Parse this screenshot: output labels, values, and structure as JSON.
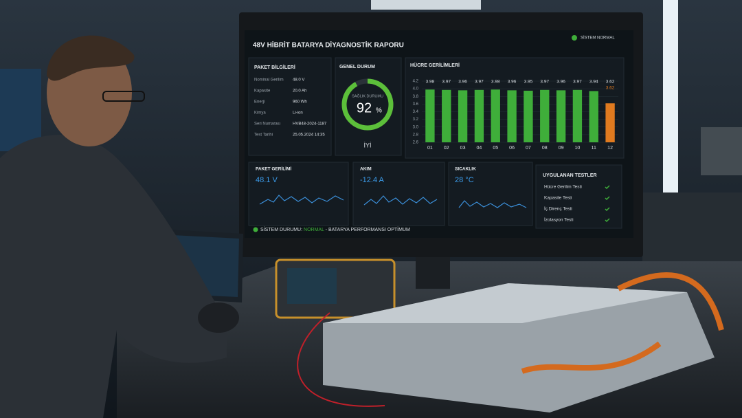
{
  "dashboard": {
    "title": "48V HİBRİT BATARYA DİYAGNOSTİK RAPORU",
    "status": "SİSTEM NORMAL",
    "pack_info": {
      "heading": "PAKET BİLGİLERİ",
      "rows": [
        [
          "Nominal Gerilim",
          "48.0 V"
        ],
        [
          "Kapasite",
          "20.0 Ah"
        ],
        [
          "Enerji",
          "960 Wh"
        ],
        [
          "Kimya",
          "Li-ion"
        ],
        [
          "Seri Numarası",
          "HVB48-2024-1187"
        ],
        [
          "Test Tarihi",
          "25.05.2024  14:35"
        ]
      ]
    },
    "health": {
      "heading": "GENEL DURUM",
      "label": "SAĞLIK DURUMU",
      "value": 92,
      "unit": "%",
      "rating": "İYİ"
    },
    "cell_voltages": {
      "type": "bar",
      "title": "HÜCRE GERİLİMLERİ",
      "categories": [
        "01",
        "02",
        "03",
        "04",
        "05",
        "06",
        "07",
        "08",
        "09",
        "10",
        "11",
        "12"
      ],
      "values": [
        3.98,
        3.97,
        3.96,
        3.97,
        3.98,
        3.96,
        3.95,
        3.97,
        3.96,
        3.97,
        3.94,
        3.62
      ],
      "colors": [
        "#3fae3a",
        "#3fae3a",
        "#3fae3a",
        "#3fae3a",
        "#3fae3a",
        "#3fae3a",
        "#3fae3a",
        "#3fae3a",
        "#3fae3a",
        "#3fae3a",
        "#3fae3a",
        "#e07a1f"
      ],
      "ylim": [
        2.6,
        4.2
      ],
      "yticks": [
        2.6,
        2.8,
        {
          "value": 3,
          "label": "3.0"
        },
        3.2,
        3.4,
        3.6,
        3.8,
        {
          "value": 4,
          "label": "4.0"
        },
        4.2
      ],
      "grid": true
    },
    "metrics": [
      {
        "label": "PAKET GERİLİMİ",
        "value": "48.1 V"
      },
      {
        "label": "AKIM",
        "value": "-12.4 A"
      },
      {
        "label": "SICAKLIK",
        "value": "28 °C"
      }
    ],
    "tests": {
      "heading": "UYGULANAN TESTLER",
      "items": [
        "Hücre Gerilim Testi",
        "Kapasite Testi",
        "İç Direnç Testi",
        "İzolasyon Testi"
      ]
    },
    "footer": {
      "prefix": "SİSTEM DURUMU:",
      "state": "NORMAL",
      "message": "- BATARYA PERFORMANSI OPTİMUM"
    }
  }
}
